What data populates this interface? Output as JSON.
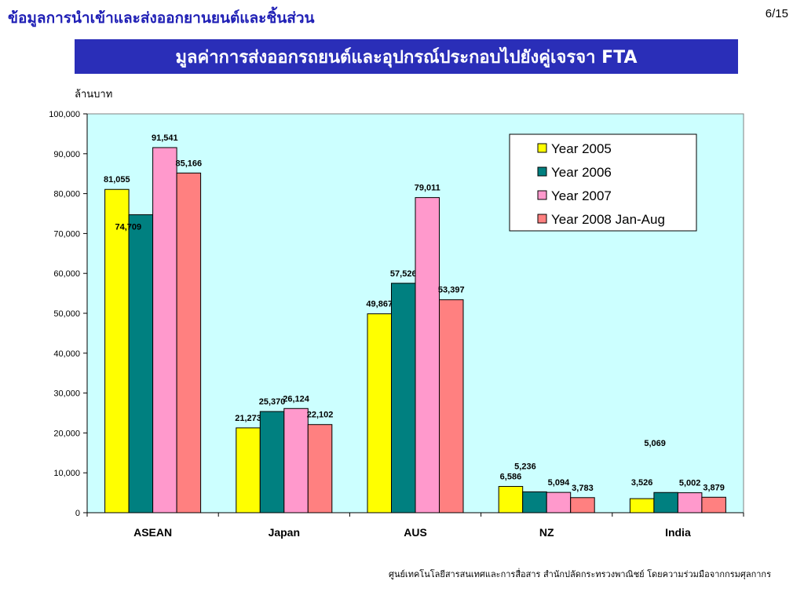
{
  "header": {
    "title": "ข้อมูลการนำเข้าและส่งออกยานยนต์และชิ้นส่วน",
    "page": "6/15"
  },
  "banner": {
    "text": "มูลค่าการส่งออกรถยนต์และอุปกรณ์ประกอบไปยังคู่เจรจา FTA"
  },
  "footer": {
    "text": "ศูนย์เทคโนโลยีสารสนเทศและการสื่อสาร สำนักปลัดกระทรวงพาณิชย์ โดยความร่วมมือจากกรมศุลกากร"
  },
  "colors": {
    "plot_background": "#ccffff",
    "banner": "#2a2eb8",
    "title_text": "#1f1fb5"
  },
  "chart_data": {
    "type": "bar",
    "ylabel": "ล้านบาท",
    "ylim": [
      0,
      100000
    ],
    "yticks": [
      "0",
      "10,000",
      "20,000",
      "30,000",
      "40,000",
      "50,000",
      "60,000",
      "70,000",
      "80,000",
      "90,000",
      "100,000"
    ],
    "categories": [
      "ASEAN",
      "Japan",
      "AUS",
      "NZ",
      "India"
    ],
    "grid": false,
    "legend_position": "top-right",
    "series": [
      {
        "name": "Year 2005",
        "color": "#ffff00",
        "values": [
          81055,
          21273,
          49867,
          6586,
          3526
        ],
        "labels": [
          "81,055",
          "21,273",
          "49,867",
          "6,586",
          "3,526"
        ]
      },
      {
        "name": "Year 2006",
        "color": "#008080",
        "values": [
          74709,
          25370,
          57526,
          5236,
          5069
        ],
        "labels": [
          "74,709",
          "25,370",
          "57,526",
          "5,236",
          "5,069"
        ]
      },
      {
        "name": "Year 2007",
        "color": "#ff99cc",
        "values": [
          91541,
          26124,
          79011,
          5094,
          5002
        ],
        "labels": [
          "91,541",
          "26,124",
          "79,011",
          "5,094",
          "5,002"
        ]
      },
      {
        "name": "Year 2008 Jan-Aug",
        "color": "#ff8080",
        "values": [
          85166,
          22102,
          53397,
          3783,
          3879
        ],
        "labels": [
          "85,166",
          "22,102",
          "53,397",
          "3,783",
          "3,879"
        ]
      }
    ]
  }
}
